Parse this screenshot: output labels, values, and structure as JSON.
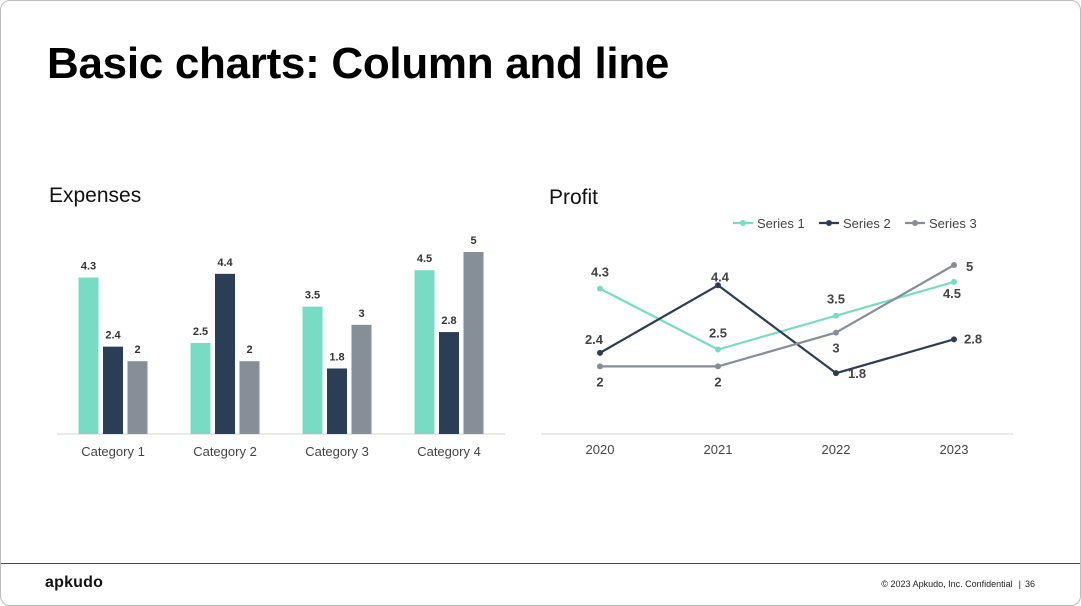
{
  "slide": {
    "title": "Basic charts: Column and line",
    "logo": "apkudo",
    "footer_text": "© 2023 Apkudo, Inc. Confidential",
    "footer_separator": "|",
    "page_number": "36"
  },
  "chart_data": [
    {
      "type": "bar",
      "title": "Expenses",
      "categories": [
        "Category 1",
        "Category 2",
        "Category 3",
        "Category 4"
      ],
      "series": [
        {
          "values": [
            4.3,
            2.5,
            3.5,
            4.5
          ],
          "color": "#78dcc4",
          "labels": [
            "4.3",
            "2.5",
            "3.5",
            "4.5"
          ]
        },
        {
          "values": [
            2.4,
            4.4,
            1.8,
            2.8
          ],
          "color": "#2c3e55",
          "labels": [
            "2.4",
            "4.4",
            "1.8",
            "2.8"
          ]
        },
        {
          "values": [
            2,
            2,
            3,
            5
          ],
          "color": "#868e98",
          "labels": [
            "2",
            "2",
            "3",
            "5"
          ]
        }
      ],
      "ylim": [
        0,
        5
      ],
      "grid": false,
      "legend": "none"
    },
    {
      "type": "line",
      "title": "Profit",
      "x": [
        "2020",
        "2021",
        "2022",
        "2023"
      ],
      "series": [
        {
          "name": "Series 1",
          "values": [
            4.3,
            2.5,
            3.5,
            4.5
          ],
          "color": "#78dcc4",
          "labels": [
            "4.3",
            "2.5",
            "3.5",
            "4.5"
          ]
        },
        {
          "name": "Series 2",
          "values": [
            2.4,
            4.4,
            1.8,
            2.8
          ],
          "color": "#2c3e55",
          "labels": [
            "2.4",
            "4.4",
            "1.8",
            "2.8"
          ]
        },
        {
          "name": "Series 3",
          "values": [
            2,
            2,
            3,
            5
          ],
          "color": "#868e98",
          "labels": [
            "2",
            "2",
            "3",
            "5"
          ]
        }
      ],
      "ylim": [
        0,
        5
      ],
      "grid": false,
      "legend": "top-right"
    }
  ]
}
